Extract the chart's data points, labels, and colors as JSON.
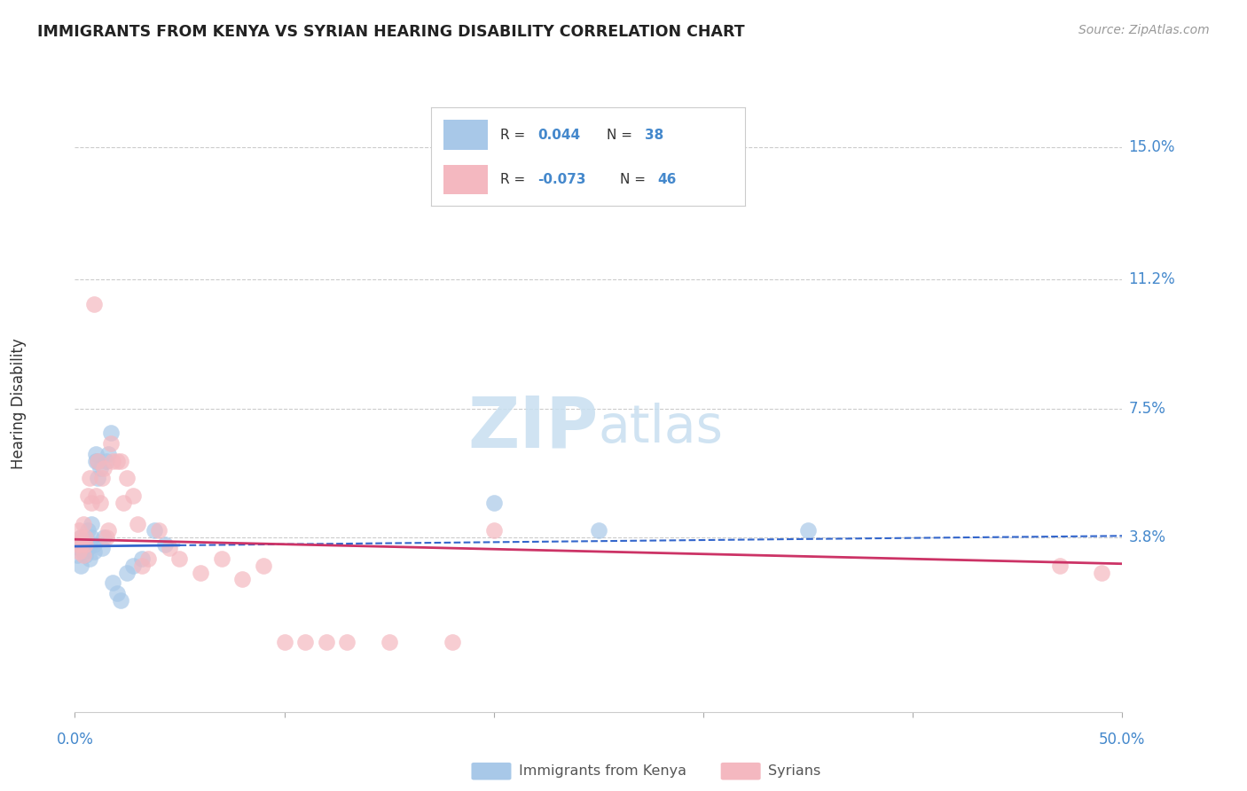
{
  "title": "IMMIGRANTS FROM KENYA VS SYRIAN HEARING DISABILITY CORRELATION CHART",
  "source": "Source: ZipAtlas.com",
  "ylabel": "Hearing Disability",
  "ytick_labels": [
    "15.0%",
    "11.2%",
    "7.5%",
    "3.8%"
  ],
  "ytick_values": [
    0.15,
    0.112,
    0.075,
    0.038
  ],
  "xlim": [
    0.0,
    0.5
  ],
  "ylim": [
    -0.012,
    0.165
  ],
  "legend_kenya_R": "0.044",
  "legend_kenya_N": "38",
  "legend_syrian_R": "-0.073",
  "legend_syrian_N": "46",
  "kenya_color": "#a8c8e8",
  "syria_color": "#f4b8c0",
  "kenya_line_color": "#3366cc",
  "syrian_line_color": "#cc3366",
  "kenya_scatter_x": [
    0.001,
    0.002,
    0.002,
    0.003,
    0.003,
    0.004,
    0.004,
    0.005,
    0.005,
    0.006,
    0.006,
    0.007,
    0.007,
    0.008,
    0.008,
    0.009,
    0.009,
    0.01,
    0.01,
    0.011,
    0.011,
    0.012,
    0.013,
    0.014,
    0.015,
    0.016,
    0.017,
    0.018,
    0.02,
    0.022,
    0.025,
    0.028,
    0.032,
    0.038,
    0.043,
    0.2,
    0.25,
    0.35
  ],
  "kenya_scatter_y": [
    0.033,
    0.035,
    0.036,
    0.03,
    0.038,
    0.036,
    0.034,
    0.038,
    0.033,
    0.035,
    0.04,
    0.036,
    0.032,
    0.038,
    0.042,
    0.034,
    0.036,
    0.06,
    0.062,
    0.055,
    0.06,
    0.058,
    0.035,
    0.038,
    0.06,
    0.062,
    0.068,
    0.025,
    0.022,
    0.02,
    0.028,
    0.03,
    0.032,
    0.04,
    0.036,
    0.048,
    0.04,
    0.04
  ],
  "syrian_scatter_x": [
    0.001,
    0.002,
    0.002,
    0.003,
    0.003,
    0.004,
    0.004,
    0.005,
    0.005,
    0.006,
    0.007,
    0.008,
    0.009,
    0.01,
    0.011,
    0.012,
    0.013,
    0.014,
    0.015,
    0.016,
    0.017,
    0.018,
    0.02,
    0.022,
    0.023,
    0.025,
    0.028,
    0.03,
    0.032,
    0.035,
    0.04,
    0.045,
    0.05,
    0.06,
    0.07,
    0.08,
    0.09,
    0.1,
    0.11,
    0.12,
    0.13,
    0.15,
    0.18,
    0.2,
    0.47,
    0.49
  ],
  "syrian_scatter_y": [
    0.036,
    0.034,
    0.04,
    0.036,
    0.038,
    0.033,
    0.042,
    0.036,
    0.038,
    0.05,
    0.055,
    0.048,
    0.105,
    0.05,
    0.06,
    0.048,
    0.055,
    0.058,
    0.038,
    0.04,
    0.065,
    0.06,
    0.06,
    0.06,
    0.048,
    0.055,
    0.05,
    0.042,
    0.03,
    0.032,
    0.04,
    0.035,
    0.032,
    0.028,
    0.032,
    0.026,
    0.03,
    0.008,
    0.008,
    0.008,
    0.008,
    0.008,
    0.008,
    0.04,
    0.03,
    0.028
  ],
  "background_color": "#ffffff",
  "grid_color": "#cccccc",
  "watermark_zip": "ZIP",
  "watermark_atlas": "atlas",
  "watermark_color": "#cce0f0"
}
